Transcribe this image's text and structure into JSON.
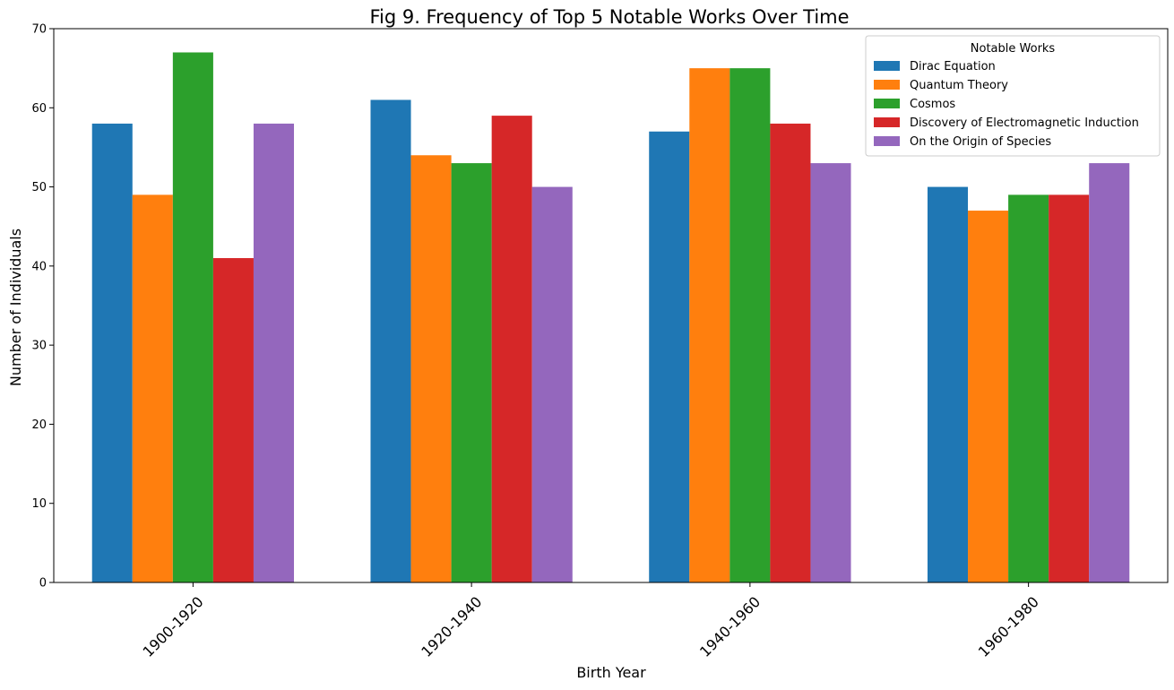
{
  "chart_data": {
    "type": "bar",
    "title": "Fig 9. Frequency of Top 5 Notable Works Over Time",
    "xlabel": "Birth Year",
    "ylabel": "Number of Individuals",
    "categories": [
      "1900-1920",
      "1920-1940",
      "1940-1960",
      "1960-1980"
    ],
    "series": [
      {
        "name": "Dirac Equation",
        "color": "#1f77b4",
        "values": [
          58,
          61,
          57,
          50
        ]
      },
      {
        "name": "Quantum Theory",
        "color": "#ff7f0e",
        "values": [
          49,
          54,
          65,
          47
        ]
      },
      {
        "name": "Cosmos",
        "color": "#2ca02c",
        "values": [
          67,
          53,
          65,
          49
        ]
      },
      {
        "name": "Discovery of Electromagnetic Induction",
        "color": "#d62728",
        "values": [
          41,
          59,
          58,
          49
        ]
      },
      {
        "name": "On the Origin of Species",
        "color": "#9467bd",
        "values": [
          58,
          50,
          53,
          53
        ]
      }
    ],
    "ylim": [
      0,
      70
    ],
    "yticks": [
      0,
      10,
      20,
      30,
      40,
      50,
      60,
      70
    ],
    "grid": false,
    "legend": {
      "title": "Notable Works",
      "placement": "top-right"
    },
    "xtick_rotation": 45
  }
}
